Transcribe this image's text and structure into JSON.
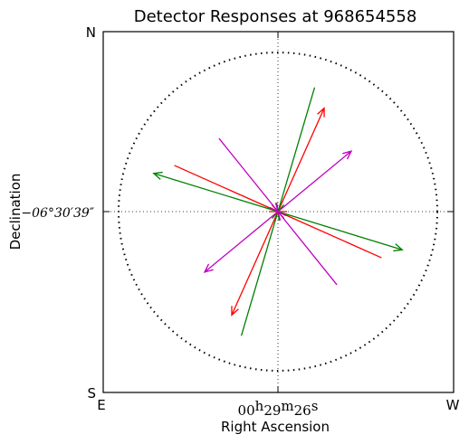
{
  "chart_data": {
    "type": "vector",
    "title": "Detector Responses at 968654558",
    "xlabel": "Right Ascension",
    "ylabel": "Declination",
    "corner_labels": {
      "top_left": "N",
      "bottom_left": "S",
      "left_bottom": "E",
      "right_bottom": "W"
    },
    "x_center_tick": {
      "prefix": "00",
      "h": "h",
      "hv": "29",
      "m": "m",
      "mv": "26",
      "s": "s"
    },
    "y_center_tick": "−06°30′39″",
    "xlim": [
      -1,
      1
    ],
    "ylim": [
      -1,
      1
    ],
    "grid": "center crosshair (dotted)",
    "unit_circle": true,
    "colors": {
      "red": "#ff0000",
      "green": "#008000",
      "magenta": "#bf00bf",
      "axes": "#000000"
    },
    "series": [
      {
        "color": "#ff0000",
        "vectors": [
          {
            "x0": -0.65,
            "y0": 0.29,
            "x1": 0.0,
            "y1": 0.0
          },
          {
            "x0": 0.0,
            "y0": 0.0,
            "x1": 0.29,
            "y1": 0.65
          },
          {
            "x0": 0.65,
            "y0": -0.29,
            "x1": 0.0,
            "y1": 0.0
          },
          {
            "x0": 0.0,
            "y0": 0.0,
            "x1": -0.29,
            "y1": -0.65
          }
        ]
      },
      {
        "color": "#008000",
        "vectors": [
          {
            "x0": 0.0,
            "y0": 0.0,
            "x1": -0.78,
            "y1": 0.24
          },
          {
            "x0": 0.23,
            "y0": 0.78,
            "x1": 0.0,
            "y1": 0.0
          },
          {
            "x0": 0.0,
            "y0": 0.0,
            "x1": 0.78,
            "y1": -0.24
          },
          {
            "x0": -0.23,
            "y0": -0.78,
            "x1": 0.0,
            "y1": 0.0
          }
        ]
      },
      {
        "color": "#bf00bf",
        "vectors": [
          {
            "x0": -0.37,
            "y0": 0.46,
            "x1": 0.0,
            "y1": 0.0
          },
          {
            "x0": 0.0,
            "y0": 0.0,
            "x1": 0.46,
            "y1": 0.38
          },
          {
            "x0": 0.37,
            "y0": -0.46,
            "x1": 0.0,
            "y1": 0.0
          },
          {
            "x0": 0.0,
            "y0": 0.0,
            "x1": -0.46,
            "y1": -0.38
          }
        ]
      }
    ]
  }
}
